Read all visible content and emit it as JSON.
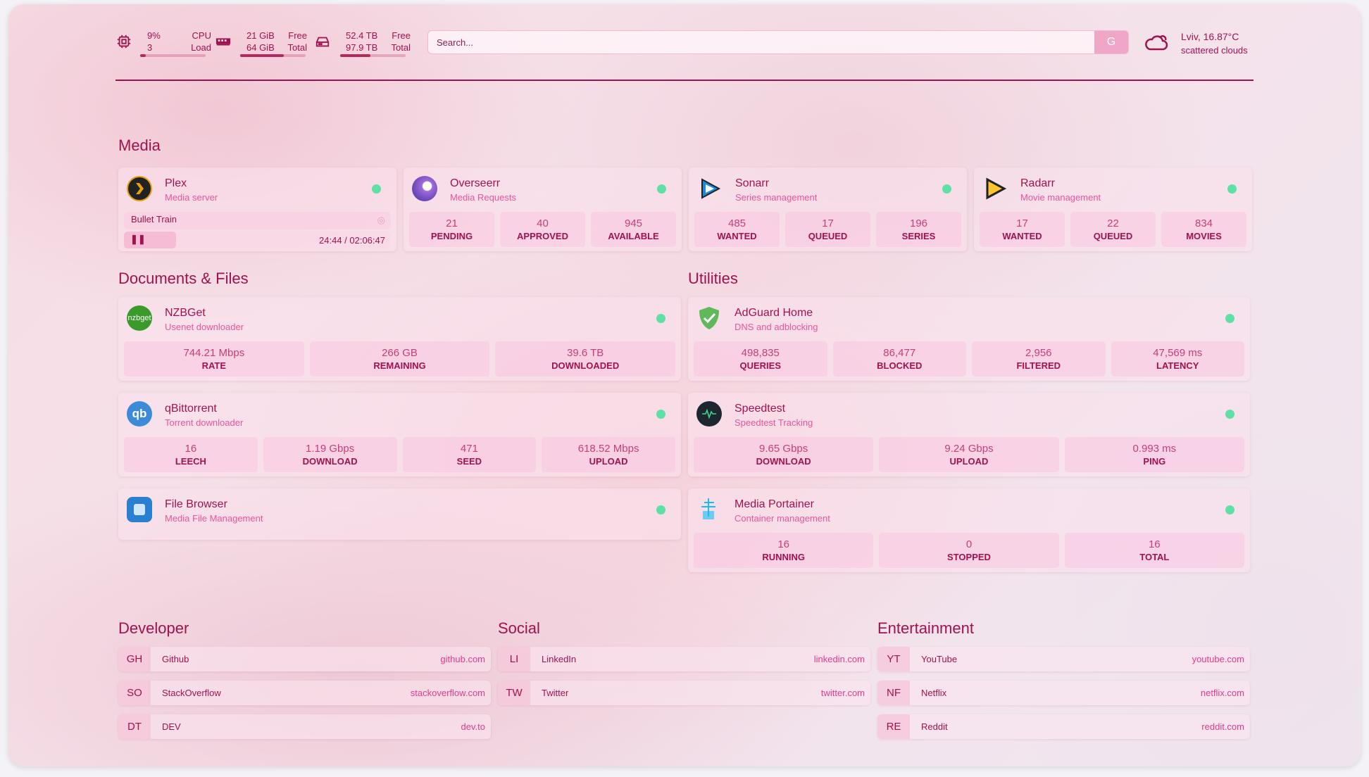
{
  "header": {
    "cpu": {
      "value": "9%",
      "sub": "3",
      "label1": "CPU",
      "label2": "Load",
      "fill": 0.09
    },
    "memory": {
      "value": "21 GiB",
      "sub": "64 GiB",
      "label1": "Free",
      "label2": "Total",
      "fill": 0.67
    },
    "disk": {
      "value": "52.4 TB",
      "sub": "97.9 TB",
      "label1": "Free",
      "label2": "Total",
      "fill": 0.46
    },
    "search": {
      "placeholder": "Search...",
      "engine_label": "G"
    },
    "weather": {
      "location_temp": "Lviv, 16.87°C",
      "condition": "scattered clouds"
    }
  },
  "colors": {
    "primary": "#a0124f",
    "secondary": "#e8559b",
    "status_ok": "#5fe0a4"
  },
  "media": {
    "title": "Media",
    "plex": {
      "name": "Plex",
      "desc": "Media server",
      "now_playing": "Bullet Train",
      "time": "24:44 / 02:06:47",
      "progress": 0.195
    },
    "cards": [
      {
        "name": "Overseerr",
        "desc": "Media Requests",
        "icon": "overseerr-icon",
        "stats": [
          {
            "v": "21",
            "l": "PENDING"
          },
          {
            "v": "40",
            "l": "APPROVED"
          },
          {
            "v": "945",
            "l": "AVAILABLE"
          }
        ]
      },
      {
        "name": "Sonarr",
        "desc": "Series management",
        "icon": "sonarr-icon",
        "stats": [
          {
            "v": "485",
            "l": "WANTED"
          },
          {
            "v": "17",
            "l": "QUEUED"
          },
          {
            "v": "196",
            "l": "SERIES"
          }
        ]
      },
      {
        "name": "Radarr",
        "desc": "Movie management",
        "icon": "radarr-icon",
        "stats": [
          {
            "v": "17",
            "l": "WANTED"
          },
          {
            "v": "22",
            "l": "QUEUED"
          },
          {
            "v": "834",
            "l": "MOVIES"
          }
        ]
      }
    ]
  },
  "docs": {
    "title": "Documents & Files",
    "cards": [
      {
        "name": "NZBGet",
        "desc": "Usenet downloader",
        "icon": "nzbget-icon",
        "stats": [
          {
            "v": "744.21 Mbps",
            "l": "RATE"
          },
          {
            "v": "266 GB",
            "l": "REMAINING"
          },
          {
            "v": "39.6 TB",
            "l": "DOWNLOADED"
          }
        ]
      },
      {
        "name": "qBittorrent",
        "desc": "Torrent downloader",
        "icon": "qbittorrent-icon",
        "stats": [
          {
            "v": "16",
            "l": "LEECH"
          },
          {
            "v": "1.19 Gbps",
            "l": "DOWNLOAD"
          },
          {
            "v": "471",
            "l": "SEED"
          },
          {
            "v": "618.52 Mbps",
            "l": "UPLOAD"
          }
        ]
      },
      {
        "name": "File Browser",
        "desc": "Media File Management",
        "icon": "file-browser-icon",
        "stats": []
      }
    ]
  },
  "utilities": {
    "title": "Utilities",
    "cards": [
      {
        "name": "AdGuard Home",
        "desc": "DNS and adblocking",
        "icon": "adguard-icon",
        "stats": [
          {
            "v": "498,835",
            "l": "QUERIES"
          },
          {
            "v": "86,477",
            "l": "BLOCKED"
          },
          {
            "v": "2,956",
            "l": "FILTERED"
          },
          {
            "v": "47,569 ms",
            "l": "LATENCY"
          }
        ]
      },
      {
        "name": "Speedtest",
        "desc": "Speedtest Tracking",
        "icon": "speedtest-icon",
        "stats": [
          {
            "v": "9.65 Gbps",
            "l": "DOWNLOAD"
          },
          {
            "v": "9.24 Gbps",
            "l": "UPLOAD"
          },
          {
            "v": "0.993 ms",
            "l": "PING"
          }
        ]
      },
      {
        "name": "Media Portainer",
        "desc": "Container management",
        "icon": "portainer-icon",
        "stats": [
          {
            "v": "16",
            "l": "RUNNING"
          },
          {
            "v": "0",
            "l": "STOPPED"
          },
          {
            "v": "16",
            "l": "TOTAL"
          }
        ]
      }
    ]
  },
  "bookmarks": [
    {
      "title": "Developer",
      "items": [
        {
          "abbr": "GH",
          "name": "Github",
          "url": "github.com"
        },
        {
          "abbr": "SO",
          "name": "StackOverflow",
          "url": "stackoverflow.com"
        },
        {
          "abbr": "DT",
          "name": "DEV",
          "url": "dev.to"
        }
      ]
    },
    {
      "title": "Social",
      "items": [
        {
          "abbr": "LI",
          "name": "LinkedIn",
          "url": "linkedin.com"
        },
        {
          "abbr": "TW",
          "name": "Twitter",
          "url": "twitter.com"
        }
      ]
    },
    {
      "title": "Entertainment",
      "items": [
        {
          "abbr": "YT",
          "name": "YouTube",
          "url": "youtube.com"
        },
        {
          "abbr": "NF",
          "name": "Netflix",
          "url": "netflix.com"
        },
        {
          "abbr": "RE",
          "name": "Reddit",
          "url": "reddit.com"
        }
      ]
    }
  ]
}
